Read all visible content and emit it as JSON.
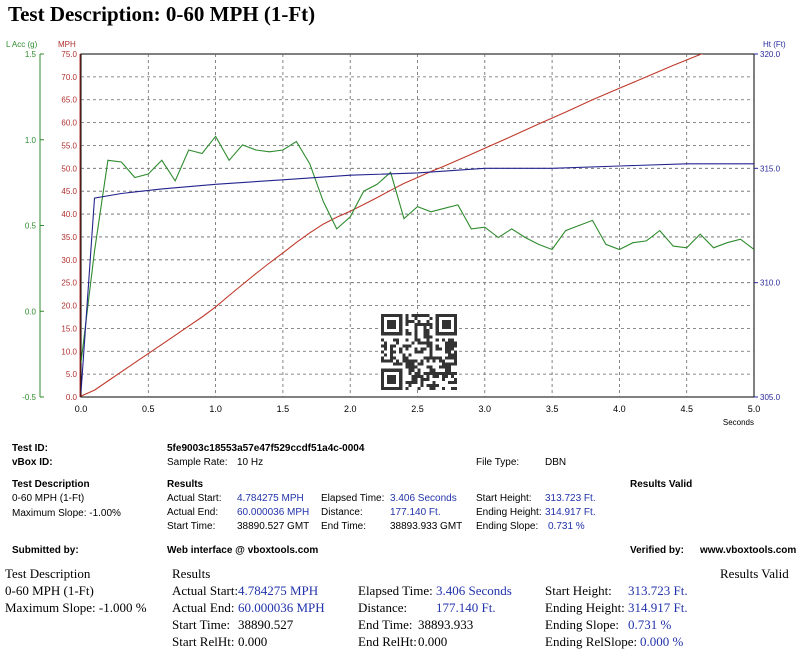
{
  "title": "Test Description: 0-60 MPH (1-Ft)",
  "chart_data": {
    "type": "line",
    "x_label": "Seconds",
    "x_range": [
      0,
      5.0
    ],
    "x_ticks": [
      "0.0",
      "0.5",
      "1.0",
      "1.5",
      "2.0",
      "2.5",
      "3.0",
      "3.5",
      "4.0",
      "4.5",
      "5.0"
    ],
    "axes": {
      "lacc": {
        "label": "L Acc (g)",
        "range": [
          -0.5,
          1.5
        ],
        "ticks": [
          "1.5",
          "1.0",
          "0.5",
          "0.0",
          "-0.5"
        ],
        "color": "#2e8b2e"
      },
      "mph": {
        "label": "MPH",
        "range": [
          0.0,
          75.0
        ],
        "ticks": [
          "75.0",
          "70.0",
          "65.0",
          "60.0",
          "55.0",
          "50.0",
          "45.0",
          "40.0",
          "35.0",
          "30.0",
          "25.0",
          "20.0",
          "15.0",
          "10.0",
          "5.0",
          "0.0"
        ],
        "color": "#b03030"
      },
      "ht": {
        "label": "Ht (Ft)",
        "range": [
          305.0,
          320.0
        ],
        "ticks": [
          "320.0",
          "315.0",
          "310.0",
          "305.0"
        ],
        "color": "#2a2a99"
      }
    },
    "grid": true,
    "series": [
      {
        "axis": "mph",
        "color": "#c0392b",
        "x": [
          0,
          0.1,
          0.2,
          0.3,
          0.4,
          0.5,
          0.6,
          0.7,
          0.8,
          0.9,
          1.0,
          1.1,
          1.2,
          1.3,
          1.4,
          1.5,
          1.6,
          1.7,
          1.8,
          1.9,
          2.0,
          2.1,
          2.2,
          2.3,
          2.4,
          2.5,
          2.6,
          2.7,
          2.8,
          2.9,
          3.0,
          3.2,
          3.4,
          3.6,
          3.8,
          4.0,
          4.2,
          4.4,
          4.6,
          4.8,
          5.0
        ],
        "values": [
          0.2,
          1.5,
          3.5,
          5.5,
          7.5,
          9.5,
          11.5,
          13.5,
          15.5,
          17.5,
          19.7,
          22.2,
          24.6,
          27.0,
          29.3,
          31.5,
          33.8,
          35.9,
          37.8,
          39.3,
          40.6,
          42.1,
          43.6,
          45.2,
          46.7,
          48.0,
          49.3,
          50.5,
          51.8,
          53.1,
          54.4,
          57.0,
          59.7,
          62.3,
          65.0,
          67.5,
          70.0,
          72.5,
          74.9,
          76.8,
          78.5
        ]
      },
      {
        "axis": "lacc",
        "color": "#2e8b2e",
        "x": [
          0,
          0.1,
          0.2,
          0.3,
          0.4,
          0.5,
          0.6,
          0.7,
          0.8,
          0.9,
          1.0,
          1.1,
          1.2,
          1.3,
          1.4,
          1.5,
          1.6,
          1.7,
          1.8,
          1.9,
          2.0,
          2.1,
          2.2,
          2.3,
          2.4,
          2.5,
          2.6,
          2.7,
          2.8,
          2.9,
          3.0,
          3.1,
          3.2,
          3.3,
          3.4,
          3.5,
          3.6,
          3.7,
          3.8,
          3.9,
          4.0,
          4.1,
          4.2,
          4.3,
          4.4,
          4.5,
          4.6,
          4.7,
          4.8,
          4.9,
          5.0
        ],
        "values": [
          -0.3,
          0.35,
          0.88,
          0.87,
          0.78,
          0.8,
          0.88,
          0.76,
          0.94,
          0.92,
          1.02,
          0.88,
          0.97,
          0.94,
          0.93,
          0.94,
          0.99,
          0.86,
          0.64,
          0.48,
          0.55,
          0.7,
          0.74,
          0.81,
          0.54,
          0.61,
          0.58,
          0.6,
          0.62,
          0.48,
          0.49,
          0.43,
          0.48,
          0.43,
          0.39,
          0.36,
          0.47,
          0.5,
          0.53,
          0.39,
          0.36,
          0.4,
          0.41,
          0.47,
          0.38,
          0.37,
          0.45,
          0.37,
          0.4,
          0.42,
          0.36
        ]
      },
      {
        "axis": "ht",
        "color": "#23238e",
        "x": [
          0,
          0.1,
          0.3,
          0.6,
          1.0,
          1.5,
          2.0,
          2.5,
          3.0,
          3.5,
          4.0,
          4.5,
          5.0
        ],
        "values": [
          305.2,
          313.7,
          313.9,
          314.1,
          314.3,
          314.5,
          314.7,
          314.8,
          315.0,
          315.0,
          315.1,
          315.2,
          315.2
        ]
      }
    ]
  },
  "info": {
    "test_id_label": "Test ID:",
    "test_id_value": "5fe9003c18553a57e47f529ccdf51a4c-0004",
    "vbox_id_label": "vBox ID:",
    "sample_rate_label": "Sample Rate:",
    "sample_rate_value": "10 Hz",
    "file_type_label": "File Type:",
    "file_type_value": "DBN",
    "test_description_label": "Test Description",
    "test_description_value": "0-60 MPH (1-Ft)",
    "max_slope": "Maximum Slope:  -1.00%",
    "results_label": "Results",
    "results_valid": "Results Valid",
    "actual_start_label": "Actual Start:",
    "actual_start_value": "4.784275 MPH",
    "actual_end_label": "Actual End:",
    "actual_end_value": "60.000036 MPH",
    "start_time_label": "Start Time:",
    "start_time_value": "38890.527 GMT",
    "elapsed_label": "Elapsed Time:",
    "elapsed_value": "3.406 Seconds",
    "distance_label": "Distance:",
    "distance_value": "177.140 Ft.",
    "end_time_label": "End Time:",
    "end_time_value": "38893.933 GMT",
    "start_height_label": "Start Height:",
    "start_height_value": "313.723 Ft.",
    "ending_height_label": "Ending Height:",
    "ending_height_value": "314.917 Ft.",
    "ending_slope_label": "Ending Slope:",
    "ending_slope_value": "0.731 %",
    "submitted_by": "Submitted by:",
    "web_interface": "Web interface @ vboxtools.com",
    "verified_by": "Verified by:",
    "verified_value": "www.vboxtools.com"
  },
  "summary": {
    "test_description_label": "Test Description",
    "test_description_value": "0-60 MPH (1-Ft)",
    "max_slope": "Maximum Slope:  -1.000 %",
    "results_label": "Results",
    "results_valid": "Results Valid",
    "actual_start_label": "Actual Start:",
    "actual_start_value": "4.784275 MPH",
    "actual_end_label": "Actual End:",
    "actual_end_value": "60.000036 MPH",
    "start_time_label": "Start Time:",
    "start_time_value": "38890.527",
    "start_relht_label": "Start RelHt:",
    "start_relht_value": "0.000",
    "elapsed_label": "Elapsed Time:",
    "elapsed_value": "3.406 Seconds",
    "distance_label": "Distance:",
    "distance_value": "177.140 Ft.",
    "end_time_label": "End Time:",
    "end_time_value": "38893.933",
    "end_relht_label": "End RelHt:",
    "end_relht_value": "0.000",
    "start_height_label": "Start Height:",
    "start_height_value": "313.723 Ft.",
    "ending_height_label": "Ending Height:",
    "ending_height_value": "314.917 Ft.",
    "ending_slope_label": "Ending Slope:",
    "ending_slope_value": "0.731 %",
    "ending_relslope_label": "Ending RelSlope:",
    "ending_relslope_value": "0.000 %"
  }
}
